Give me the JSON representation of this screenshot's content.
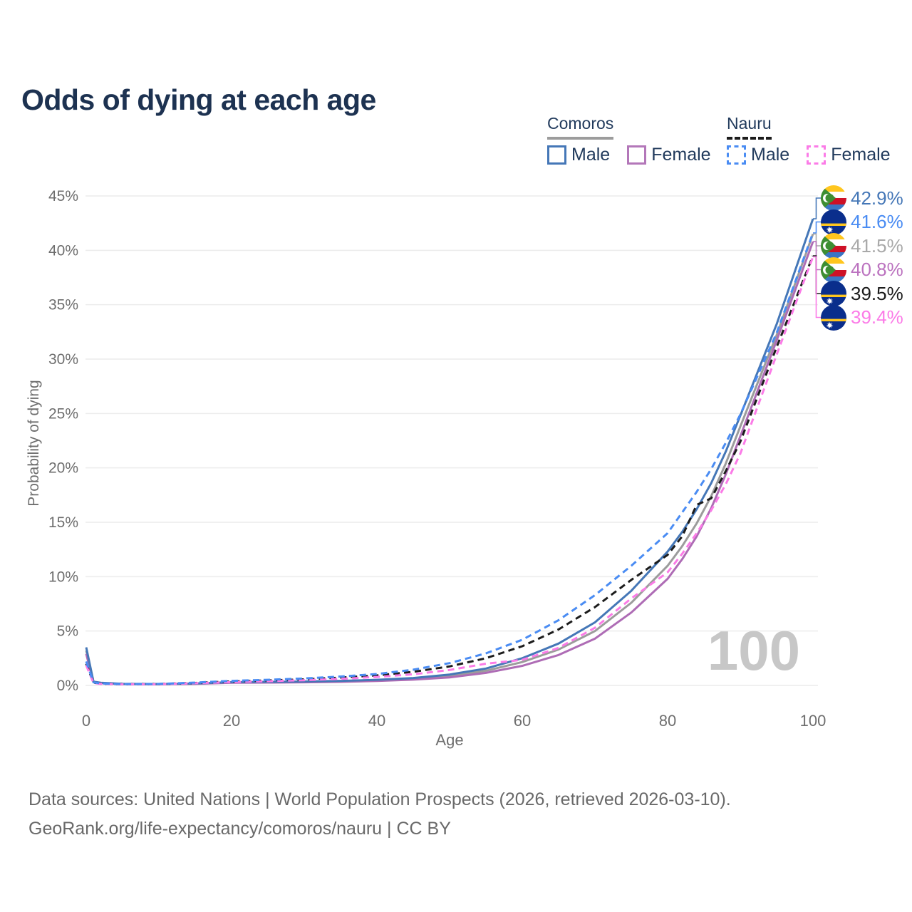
{
  "header": {
    "title": "Odds of dying at each age"
  },
  "legend": {
    "groups": [
      {
        "label": "Comoros",
        "line_color": "#9c9c9c",
        "line_style": "solid",
        "items": [
          {
            "label": "Male",
            "color": "#4577b7",
            "style": "solid"
          },
          {
            "label": "Female",
            "color": "#b377b9",
            "style": "solid"
          }
        ]
      },
      {
        "label": "Nauru",
        "line_color": "#1c1c1c",
        "line_style": "dashed",
        "items": [
          {
            "label": "Male",
            "color": "#4a8cf3",
            "style": "dashed"
          },
          {
            "label": "Female",
            "color": "#fb7be7",
            "style": "dashed"
          }
        ]
      }
    ]
  },
  "chart_data": {
    "type": "line",
    "title": "Odds of dying at each age",
    "xlabel": "Age",
    "ylabel": "Probability of dying",
    "xlim": [
      0,
      100
    ],
    "ylim": [
      0,
      45
    ],
    "grid": "horizontal",
    "legend_position": "top-right",
    "age_counter": "100",
    "x_tick_values": [
      0,
      20,
      40,
      60,
      80,
      100
    ],
    "x_tick_labels": [
      "0",
      "20",
      "40",
      "60",
      "80",
      "100"
    ],
    "y_tick_values": [
      0,
      5,
      10,
      15,
      20,
      25,
      30,
      35,
      40,
      45
    ],
    "y_tick_labels": [
      "0%",
      "5%",
      "10%",
      "15%",
      "20%",
      "25%",
      "30%",
      "35%",
      "40%",
      "45%"
    ],
    "x": [
      0,
      1,
      2,
      5,
      10,
      15,
      20,
      25,
      30,
      35,
      40,
      45,
      50,
      55,
      60,
      65,
      70,
      75,
      80,
      82,
      84,
      86,
      88,
      90,
      95,
      100
    ],
    "series": [
      {
        "key": "comoros_total",
        "name": "Comoros",
        "country": "Comoros",
        "sex": "Total",
        "color": "#9c9c9c",
        "dash": false,
        "values": [
          3.2,
          0.32,
          0.22,
          0.14,
          0.12,
          0.16,
          0.27,
          0.3,
          0.32,
          0.37,
          0.46,
          0.6,
          0.86,
          1.35,
          2.15,
          3.3,
          5.0,
          7.6,
          11.0,
          12.8,
          14.9,
          17.4,
          20.4,
          23.8,
          32.2,
          41.5
        ]
      },
      {
        "key": "comoros_female",
        "name": "Comoros Female",
        "country": "Comoros",
        "sex": "Female",
        "color": "#ae6cb5",
        "dash": false,
        "values": [
          2.9,
          0.3,
          0.2,
          0.13,
          0.11,
          0.15,
          0.24,
          0.26,
          0.29,
          0.33,
          0.41,
          0.53,
          0.74,
          1.15,
          1.8,
          2.8,
          4.3,
          6.7,
          9.8,
          11.6,
          13.7,
          16.3,
          19.4,
          22.9,
          31.7,
          40.8
        ]
      },
      {
        "key": "comoros_male",
        "name": "Comoros Male",
        "country": "Comoros",
        "sex": "Male",
        "color": "#4577b7",
        "dash": false,
        "values": [
          3.5,
          0.35,
          0.25,
          0.15,
          0.13,
          0.18,
          0.3,
          0.33,
          0.36,
          0.42,
          0.52,
          0.68,
          1.0,
          1.55,
          2.5,
          3.85,
          5.8,
          8.7,
          12.3,
          14.1,
          16.2,
          18.6,
          21.5,
          24.8,
          33.2,
          42.9
        ]
      },
      {
        "key": "nauru_total",
        "name": "Nauru",
        "country": "Nauru",
        "sex": "Total",
        "color": "#1c1c1c",
        "dash": true,
        "values": [
          2.0,
          0.25,
          0.16,
          0.11,
          0.13,
          0.23,
          0.37,
          0.46,
          0.56,
          0.72,
          0.92,
          1.25,
          1.75,
          2.5,
          3.6,
          5.15,
          7.2,
          9.7,
          12.0,
          13.7,
          16.6,
          17.2,
          19.7,
          22.4,
          31.1,
          39.5
        ]
      },
      {
        "key": "nauru_female",
        "name": "Nauru Female",
        "country": "Nauru",
        "sex": "Female",
        "color": "#fb7be7",
        "dash": true,
        "values": [
          1.85,
          0.22,
          0.14,
          0.1,
          0.11,
          0.2,
          0.31,
          0.39,
          0.48,
          0.6,
          0.78,
          1.02,
          1.42,
          2.0,
          2.35,
          3.45,
          5.3,
          8.0,
          10.4,
          12.1,
          14.0,
          16.1,
          18.5,
          21.3,
          30.4,
          39.4
        ]
      },
      {
        "key": "nauru_male",
        "name": "Nauru Male",
        "country": "Nauru",
        "sex": "Male",
        "color": "#4a8cf3",
        "dash": true,
        "values": [
          2.2,
          0.28,
          0.18,
          0.12,
          0.14,
          0.26,
          0.42,
          0.52,
          0.64,
          0.82,
          1.05,
          1.45,
          2.05,
          2.95,
          4.2,
          6.0,
          8.3,
          11.0,
          14.0,
          15.9,
          17.8,
          19.9,
          22.3,
          24.9,
          32.4,
          41.6
        ]
      }
    ]
  },
  "end_labels": {
    "rows": [
      {
        "series": "comoros_male",
        "flag": "comoros",
        "value": "42.9%",
        "color": "#4577b7"
      },
      {
        "series": "nauru_male",
        "flag": "nauru",
        "value": "41.6%",
        "color": "#4a8cf3"
      },
      {
        "series": "comoros_total",
        "flag": "comoros",
        "value": "41.5%",
        "color": "#a9a9a9"
      },
      {
        "series": "comoros_female",
        "flag": "comoros",
        "value": "40.8%",
        "color": "#bb72bf"
      },
      {
        "series": "nauru_total",
        "flag": "nauru",
        "value": "39.5%",
        "color": "#1c1c1c"
      },
      {
        "series": "nauru_female",
        "flag": "nauru",
        "value": "39.4%",
        "color": "#fb7be7"
      }
    ]
  },
  "footer": {
    "line1": "Data sources: United Nations | World Population Prospects (2026, retrieved 2026-03-10).",
    "line2": "GeoRank.org/life-expectancy/comoros/nauru | CC BY"
  }
}
